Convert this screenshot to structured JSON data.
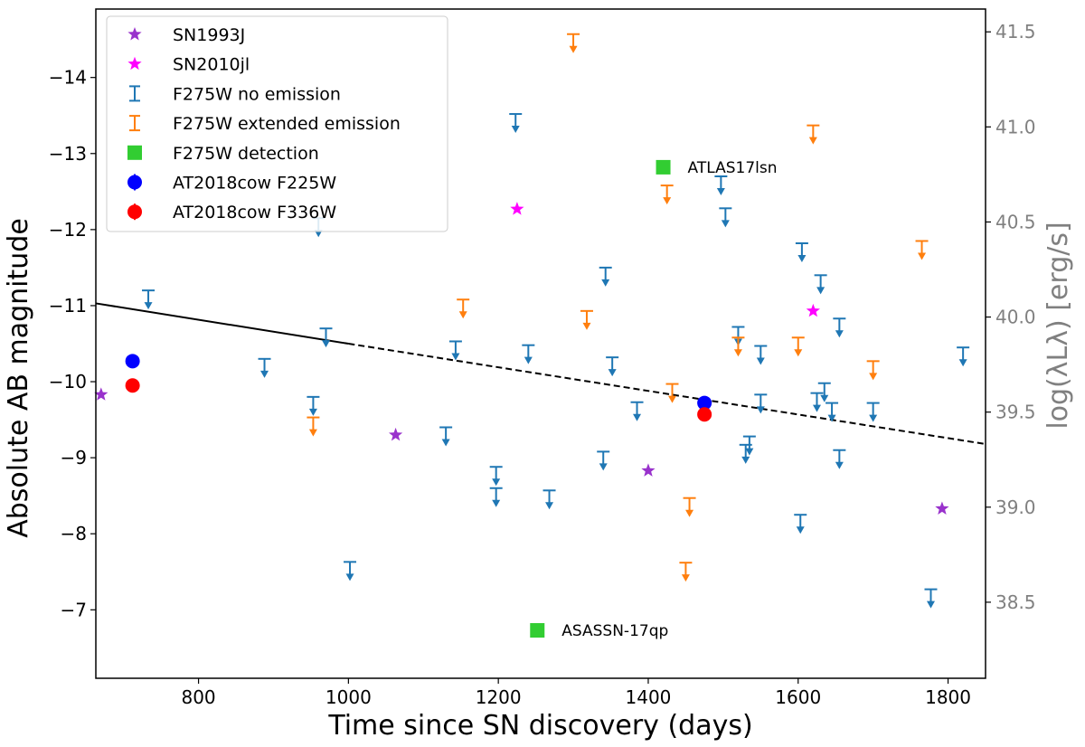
{
  "chart_data": {
    "type": "scatter",
    "xlabel": "Time since SN discovery (days)",
    "ylabel": "Absolute AB magnitude",
    "ylabel_right": "log(λLλ) [erg/s]",
    "xlim": [
      663,
      1850
    ],
    "ylim": [
      -6.1,
      -14.9
    ],
    "xticks": [
      800,
      1000,
      1200,
      1400,
      1600,
      1800
    ],
    "yticks": [
      -7,
      -8,
      -9,
      -10,
      -11,
      -12,
      -13,
      -14
    ],
    "yticks_right": [
      38.5,
      39.0,
      39.5,
      40.0,
      40.5,
      41.0,
      41.5
    ],
    "legend": [
      {
        "key": "sn1993j",
        "label": "SN1993J",
        "marker": "star",
        "color": "#9932cc"
      },
      {
        "key": "sn2010jl",
        "label": "SN2010jl",
        "marker": "star",
        "color": "#ff00ff"
      },
      {
        "key": "no_emission",
        "label": "F275W no emission",
        "marker": "errorbar",
        "color": "#1f77b4"
      },
      {
        "key": "extended",
        "label": "F275W extended emission",
        "marker": "errorbar",
        "color": "#ff7f0e"
      },
      {
        "key": "detection",
        "label": "F275W detection",
        "marker": "square",
        "color": "#32cd32"
      },
      {
        "key": "cow225",
        "label": "AT2018cow F225W",
        "marker": "circle",
        "color": "#0000ff"
      },
      {
        "key": "cow336",
        "label": "AT2018cow F336W",
        "marker": "circle",
        "color": "#ff0000"
      }
    ],
    "series": {
      "sn1993j": [
        [
          670,
          -9.83
        ],
        [
          1063,
          -9.3
        ],
        [
          1400,
          -8.83
        ],
        [
          1792,
          -8.33
        ]
      ],
      "sn2010jl": [
        [
          1225,
          -12.27
        ],
        [
          1620,
          -10.93
        ]
      ],
      "no_emission_limits": [
        [
          733,
          -11.2
        ],
        [
          888,
          -10.3
        ],
        [
          953,
          -9.8
        ],
        [
          960,
          -12.15
        ],
        [
          970,
          -10.7
        ],
        [
          1002,
          -7.63
        ],
        [
          1130,
          -9.4
        ],
        [
          1143,
          -10.53
        ],
        [
          1197,
          -8.88
        ],
        [
          1197,
          -8.6
        ],
        [
          1223,
          -13.52
        ],
        [
          1240,
          -10.48
        ],
        [
          1268,
          -8.57
        ],
        [
          1340,
          -9.08
        ],
        [
          1343,
          -11.5
        ],
        [
          1352,
          -10.32
        ],
        [
          1385,
          -9.73
        ],
        [
          1497,
          -12.7
        ],
        [
          1503,
          -12.28
        ],
        [
          1520,
          -10.72
        ],
        [
          1530,
          -9.17
        ],
        [
          1535,
          -9.28
        ],
        [
          1550,
          -10.47
        ],
        [
          1550,
          -9.83
        ],
        [
          1603,
          -8.25
        ],
        [
          1605,
          -11.82
        ],
        [
          1625,
          -9.85
        ],
        [
          1630,
          -11.4
        ],
        [
          1635,
          -9.98
        ],
        [
          1645,
          -9.72
        ],
        [
          1655,
          -9.1
        ],
        [
          1655,
          -10.83
        ],
        [
          1700,
          -9.72
        ],
        [
          1777,
          -7.27
        ],
        [
          1820,
          -10.45
        ]
      ],
      "extended_limits": [
        [
          953,
          -9.53
        ],
        [
          1153,
          -11.08
        ],
        [
          1300,
          -14.57
        ],
        [
          1318,
          -10.93
        ],
        [
          1425,
          -12.58
        ],
        [
          1432,
          -9.97
        ],
        [
          1450,
          -7.62
        ],
        [
          1455,
          -8.47
        ],
        [
          1520,
          -10.58
        ],
        [
          1600,
          -10.58
        ],
        [
          1620,
          -13.37
        ],
        [
          1700,
          -10.27
        ],
        [
          1765,
          -11.85
        ]
      ],
      "detection": [
        [
          1252,
          -6.73
        ],
        [
          1420,
          -12.82
        ]
      ],
      "cow225": [
        [
          712,
          -10.27
        ],
        [
          1475,
          -9.72
        ]
      ],
      "cow336": [
        [
          712,
          -9.95
        ],
        [
          1475,
          -9.57
        ]
      ]
    },
    "annotations": [
      {
        "label": "ATLAS17lsn",
        "x": 1420,
        "y": -12.82
      },
      {
        "label": "ASASSN-17qp",
        "x": 1252,
        "y": -6.73
      }
    ],
    "fit_line": {
      "solid": [
        [
          663,
          -11.03
        ],
        [
          1000,
          -10.5
        ]
      ],
      "dashed": [
        [
          1000,
          -10.5
        ],
        [
          1850,
          -9.18
        ]
      ],
      "color": "#000000"
    },
    "right_axis_color": "#808080"
  }
}
